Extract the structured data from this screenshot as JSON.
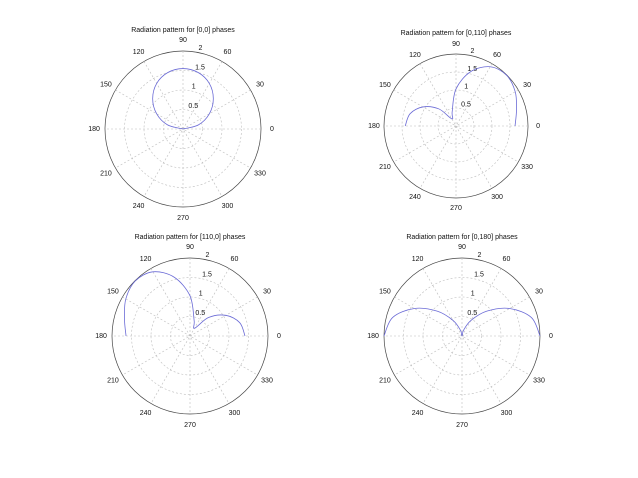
{
  "chart_data": [
    {
      "type": "line",
      "projection": "polar",
      "title": "Radiation pattern for [0,0] phases",
      "phases_deg": [
        0,
        0
      ],
      "r_max": 2,
      "r_ticks": [
        0.5,
        1,
        1.5,
        2
      ],
      "r_tick_labels": [
        "0.5",
        "1",
        "1.5",
        "2"
      ],
      "theta_tick_labels": [
        "0",
        "30",
        "60",
        "90",
        "120",
        "150",
        "180",
        "210",
        "240",
        "270",
        "300",
        "330"
      ],
      "theta_range_deg": [
        0,
        180
      ],
      "series": [
        {
          "theta_deg": [
            0,
            15,
            30,
            45,
            60,
            75,
            90,
            105,
            120,
            135,
            150,
            165,
            180
          ],
          "r": [
            0.0,
            0.41,
            0.78,
            1.1,
            1.35,
            1.5,
            1.55,
            1.5,
            1.35,
            1.1,
            0.78,
            0.41,
            0.0
          ]
        }
      ],
      "grid": true
    },
    {
      "type": "line",
      "projection": "polar",
      "title": "Radiation pattern for [0,110] phases",
      "phases_deg": [
        0,
        110
      ],
      "r_max": 2,
      "r_ticks": [
        0.5,
        1,
        1.5,
        2
      ],
      "r_tick_labels": [
        "0.5",
        "1",
        "1.5",
        "2"
      ],
      "theta_tick_labels": [
        "0",
        "30",
        "60",
        "90",
        "120",
        "150",
        "180",
        "210",
        "240",
        "270",
        "300",
        "330"
      ],
      "theta_range_deg": [
        0,
        180
      ],
      "series": [
        {
          "theta_deg": [
            0,
            15,
            30,
            45,
            60,
            75,
            90,
            105,
            120,
            135,
            150,
            165,
            180
          ],
          "r": [
            1.64,
            1.74,
            1.9,
            1.99,
            1.9,
            1.56,
            1.03,
            0.41,
            0.23,
            0.67,
            1.06,
            1.32,
            1.41
          ]
        }
      ],
      "grid": true
    },
    {
      "type": "line",
      "projection": "polar",
      "title": "Radiation pattern for [110,0] phases",
      "phases_deg": [
        110,
        0
      ],
      "r_max": 2,
      "r_ticks": [
        0.5,
        1,
        1.5,
        2
      ],
      "r_tick_labels": [
        "0.5",
        "1",
        "1.5",
        "2"
      ],
      "theta_tick_labels": [
        "0",
        "30",
        "60",
        "90",
        "120",
        "150",
        "180",
        "210",
        "240",
        "270",
        "300",
        "330"
      ],
      "theta_range_deg": [
        0,
        180
      ],
      "series": [
        {
          "theta_deg": [
            0,
            15,
            30,
            45,
            60,
            75,
            90,
            105,
            120,
            135,
            150,
            165,
            180
          ],
          "r": [
            1.41,
            1.32,
            1.06,
            0.67,
            0.23,
            0.41,
            1.03,
            1.56,
            1.9,
            1.99,
            1.9,
            1.74,
            1.64
          ]
        }
      ],
      "grid": true
    },
    {
      "type": "line",
      "projection": "polar",
      "title": "Radiation pattern for [0,180] phases",
      "phases_deg": [
        0,
        180
      ],
      "r_max": 2,
      "r_ticks": [
        0.5,
        1,
        1.5,
        2
      ],
      "r_tick_labels": [
        "0.5",
        "1",
        "1.5",
        "2"
      ],
      "theta_tick_labels": [
        "0",
        "30",
        "60",
        "90",
        "120",
        "150",
        "180",
        "210",
        "240",
        "270",
        "300",
        "330"
      ],
      "theta_range_deg": [
        0,
        180
      ],
      "series": [
        {
          "theta_deg": [
            0,
            15,
            30,
            45,
            60,
            75,
            90,
            105,
            120,
            135,
            150,
            165,
            180
          ],
          "r": [
            2.0,
            1.84,
            1.41,
            0.9,
            0.46,
            0.15,
            0.0,
            0.15,
            0.46,
            0.9,
            1.41,
            1.84,
            2.0
          ]
        }
      ],
      "grid": true
    }
  ],
  "style": {
    "trace_color": "#6b6bd6",
    "grid_color": "#bdbdbd",
    "axis_color": "#444444"
  }
}
